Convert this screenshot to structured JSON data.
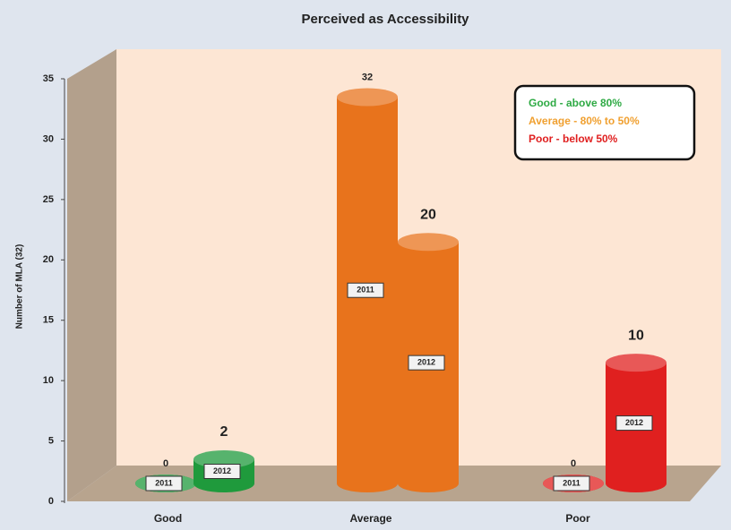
{
  "chart_data": {
    "type": "cylinder",
    "title": "Perceived as Accessibility",
    "y_label": "Number of MLA (32)",
    "categories": [
      "Good",
      "Average",
      "Poor"
    ],
    "category_colors": [
      "#1f9a3c",
      "#e8731c",
      "#e0201f"
    ],
    "series": [
      {
        "name": "2011",
        "values": [
          0,
          32,
          0
        ]
      },
      {
        "name": "2012",
        "values": [
          2,
          20,
          10
        ]
      }
    ],
    "ylim": [
      0,
      35
    ],
    "yticks": [
      0,
      5,
      10,
      15,
      20,
      25,
      30,
      35
    ],
    "legend": {
      "position": "upper right",
      "items": [
        {
          "text": "Good - above 80%",
          "color": "#2eaa44"
        },
        {
          "text": "Average - 80% to 50%",
          "color": "#f0a030"
        },
        {
          "text": "Poor  - below 50%",
          "color": "#e02020"
        }
      ]
    }
  }
}
